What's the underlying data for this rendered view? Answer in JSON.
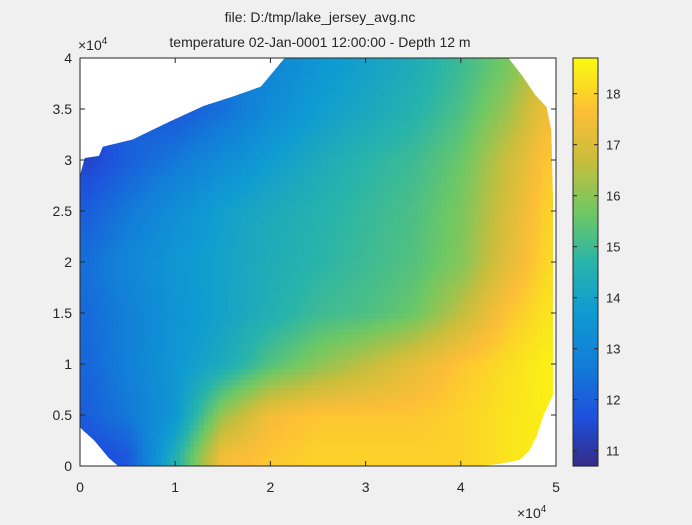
{
  "figure": {
    "title_line1": "file: D:/tmp/lake_jersey_avg.nc",
    "title_line2": "temperature 02-Jan-0001 12:00:00  - Depth 12 m",
    "x_exponent_base": "×10",
    "x_exponent_power": "4",
    "y_exponent_base": "×10",
    "y_exponent_power": "4"
  },
  "chart_data": {
    "type": "heatmap",
    "title": "temperature 02-Jan-0001 12:00:00  - Depth 12 m",
    "xlabel": "",
    "ylabel": "",
    "xlim": [
      0,
      50000
    ],
    "ylim": [
      0,
      40000
    ],
    "x_ticks": [
      0,
      10000,
      20000,
      30000,
      40000,
      50000
    ],
    "x_tick_labels": [
      "0",
      "1",
      "2",
      "3",
      "4",
      "5"
    ],
    "y_ticks": [
      0,
      5000,
      10000,
      15000,
      20000,
      25000,
      30000,
      35000,
      40000
    ],
    "y_tick_labels": [
      "0",
      "0.5",
      "1",
      "1.5",
      "2",
      "2.5",
      "3",
      "3.5",
      "4"
    ],
    "colorbar": {
      "clim": [
        10.7,
        18.7
      ],
      "ticks": [
        11,
        12,
        13,
        14,
        15,
        16,
        17,
        18
      ],
      "tick_labels": [
        "11",
        "12",
        "13",
        "14",
        "15",
        "16",
        "17",
        "18"
      ],
      "colormap": "parula"
    },
    "lake_outline": {
      "note": "domain boundary in data units (x, y)",
      "points": [
        [
          0,
          28500
        ],
        [
          500,
          30200
        ],
        [
          2000,
          30400
        ],
        [
          2400,
          31300
        ],
        [
          5500,
          32000
        ],
        [
          9500,
          33800
        ],
        [
          13000,
          35300
        ],
        [
          16000,
          36200
        ],
        [
          19000,
          37200
        ],
        [
          21500,
          40000
        ],
        [
          45000,
          40000
        ],
        [
          46500,
          38200
        ],
        [
          47800,
          36400
        ],
        [
          49000,
          35200
        ],
        [
          49500,
          33000
        ],
        [
          49700,
          26000
        ],
        [
          49700,
          7000
        ],
        [
          48700,
          5000
        ],
        [
          48000,
          3000
        ],
        [
          47200,
          1500
        ],
        [
          46200,
          600
        ],
        [
          44000,
          200
        ],
        [
          42000,
          0
        ],
        [
          4000,
          0
        ],
        [
          3000,
          800
        ],
        [
          1500,
          2500
        ],
        [
          300,
          3500
        ],
        [
          0,
          3800
        ]
      ]
    },
    "temperature_field": {
      "note": "approximate temperature (°C) sampled over the lake; NaN outside domain",
      "x": [
        1000,
        5000,
        10000,
        15000,
        20000,
        25000,
        30000,
        35000,
        40000,
        45000,
        49000
      ],
      "y": [
        1000,
        5000,
        10000,
        15000,
        20000,
        25000,
        30000,
        35000,
        39000
      ],
      "values": [
        [
          11.5,
          11.8,
          14.5,
          17.5,
          17.8,
          18.0,
          18.0,
          18.0,
          18.0,
          18.3,
          18.5
        ],
        [
          12.0,
          12.6,
          13.6,
          16.2,
          17.5,
          17.8,
          17.8,
          17.8,
          18.0,
          18.3,
          18.5
        ],
        [
          12.2,
          12.8,
          13.6,
          14.3,
          15.3,
          16.0,
          16.6,
          17.2,
          17.8,
          18.2,
          18.5
        ],
        [
          12.3,
          12.8,
          13.5,
          14.0,
          14.5,
          15.0,
          15.2,
          15.6,
          16.6,
          17.8,
          18.3
        ],
        [
          12.4,
          13.0,
          13.6,
          14.0,
          14.4,
          14.7,
          15.0,
          15.3,
          15.9,
          17.2,
          18.1
        ],
        [
          12.0,
          12.6,
          13.3,
          13.9,
          14.3,
          14.6,
          14.9,
          15.2,
          15.8,
          17.0,
          18.0
        ],
        [
          11.4,
          12.0,
          12.6,
          13.2,
          13.8,
          14.3,
          14.7,
          15.0,
          15.6,
          16.8,
          17.8
        ],
        [
          null,
          null,
          11.8,
          12.4,
          13.2,
          13.8,
          14.2,
          14.6,
          15.2,
          16.2,
          17.4
        ],
        [
          null,
          null,
          null,
          null,
          13.0,
          13.6,
          14.0,
          14.4,
          15.0,
          15.8,
          17.0
        ]
      ]
    }
  }
}
